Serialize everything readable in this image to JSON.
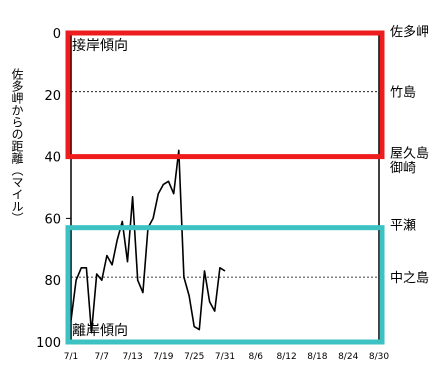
{
  "chart_data": {
    "type": "line",
    "ylabel": "佐多岬からの距離（マイル）",
    "ylim": [
      0,
      100
    ],
    "y_inverted": true,
    "y_ticks": [
      "0",
      "20",
      "40",
      "60",
      "80",
      "100"
    ],
    "x_tick_labels": [
      "7/1",
      "7/7",
      "7/13",
      "7/19",
      "7/25",
      "7/31",
      "8/6",
      "8/12",
      "8/18",
      "8/24",
      "8/30"
    ],
    "x_start": "7/1",
    "x_end": "8/30",
    "reference_lines": [
      {
        "label": "竹島",
        "y": 19
      },
      {
        "label": "中之島",
        "y": 79
      }
    ],
    "right_labels": [
      {
        "text": "佐多岬",
        "y": 0
      },
      {
        "text": "竹島",
        "y": 19
      },
      {
        "text": "屋久島",
        "y": 40
      },
      {
        "text": "御崎",
        "y": 44
      },
      {
        "text": "平瀬",
        "y": 62
      },
      {
        "text": "中之島",
        "y": 79
      }
    ],
    "regions": [
      {
        "label": "接岸傾向",
        "y_from": 0,
        "y_to": 40,
        "color": "#ee1c1c"
      },
      {
        "label": "離岸傾向",
        "y_from": 63,
        "y_to": 100,
        "color": "#3cc2c2"
      }
    ],
    "series": [
      {
        "color": "#000000",
        "x": [
          "7/1",
          "7/2",
          "7/3",
          "7/4",
          "7/5",
          "7/6",
          "7/7",
          "7/8",
          "7/9",
          "7/10",
          "7/11",
          "7/12",
          "7/13",
          "7/14",
          "7/15",
          "7/16",
          "7/17",
          "7/18",
          "7/19",
          "7/20",
          "7/21",
          "7/22",
          "7/23",
          "7/24",
          "7/25",
          "7/26",
          "7/27",
          "7/28",
          "7/29",
          "7/30",
          "7/31",
          "8/1"
        ],
        "values": [
          93,
          80,
          76,
          76,
          97,
          78,
          80,
          72,
          75,
          67,
          61,
          74,
          53,
          80,
          84,
          63,
          60,
          52,
          49,
          48,
          52,
          38,
          79,
          85,
          95,
          96,
          77,
          87,
          90,
          76,
          77,
          null
        ]
      }
    ]
  }
}
